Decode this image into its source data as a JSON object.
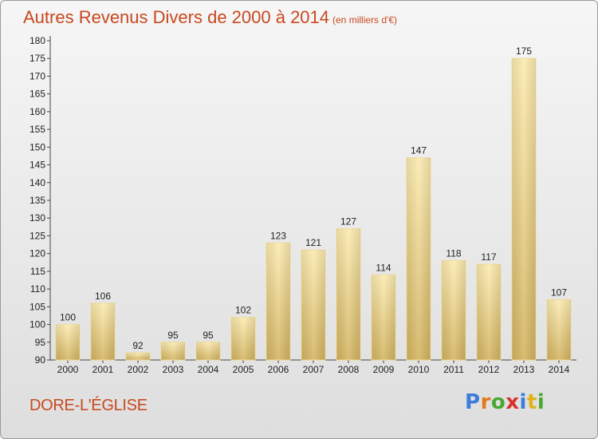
{
  "title": "Autres Revenus Divers de 2000 à 2014",
  "subtitle": "(en milliers d'€)",
  "place": "DORE-L'ÉGLISE",
  "logo": {
    "letters": [
      "P",
      "r",
      "o",
      "x",
      "i",
      "t",
      "i"
    ],
    "colors": [
      "#3b7dd8",
      "#e07a1c",
      "#4aa832",
      "#d8322a",
      "#3b7dd8",
      "#e0b21c",
      "#4aa832"
    ]
  },
  "colors": {
    "title": "#c8481e",
    "bar_light": "#fbe7a8",
    "bar_dark": "#d9bc6a"
  },
  "chart_data": {
    "type": "bar",
    "title": "Autres Revenus Divers de 2000 à 2014",
    "subtitle": "(en milliers d'€)",
    "categories": [
      "2000",
      "2001",
      "2002",
      "2003",
      "2004",
      "2005",
      "2006",
      "2007",
      "2008",
      "2009",
      "2010",
      "2011",
      "2012",
      "2013",
      "2014"
    ],
    "values": [
      100,
      106,
      92,
      95,
      95,
      102,
      123,
      121,
      127,
      114,
      147,
      118,
      117,
      175,
      107
    ],
    "ylim": [
      90,
      180
    ],
    "yticks": [
      90,
      95,
      100,
      105,
      110,
      115,
      120,
      125,
      130,
      135,
      140,
      145,
      150,
      155,
      160,
      165,
      170,
      175,
      180
    ],
    "grid": false,
    "xlabel": "",
    "ylabel": ""
  }
}
